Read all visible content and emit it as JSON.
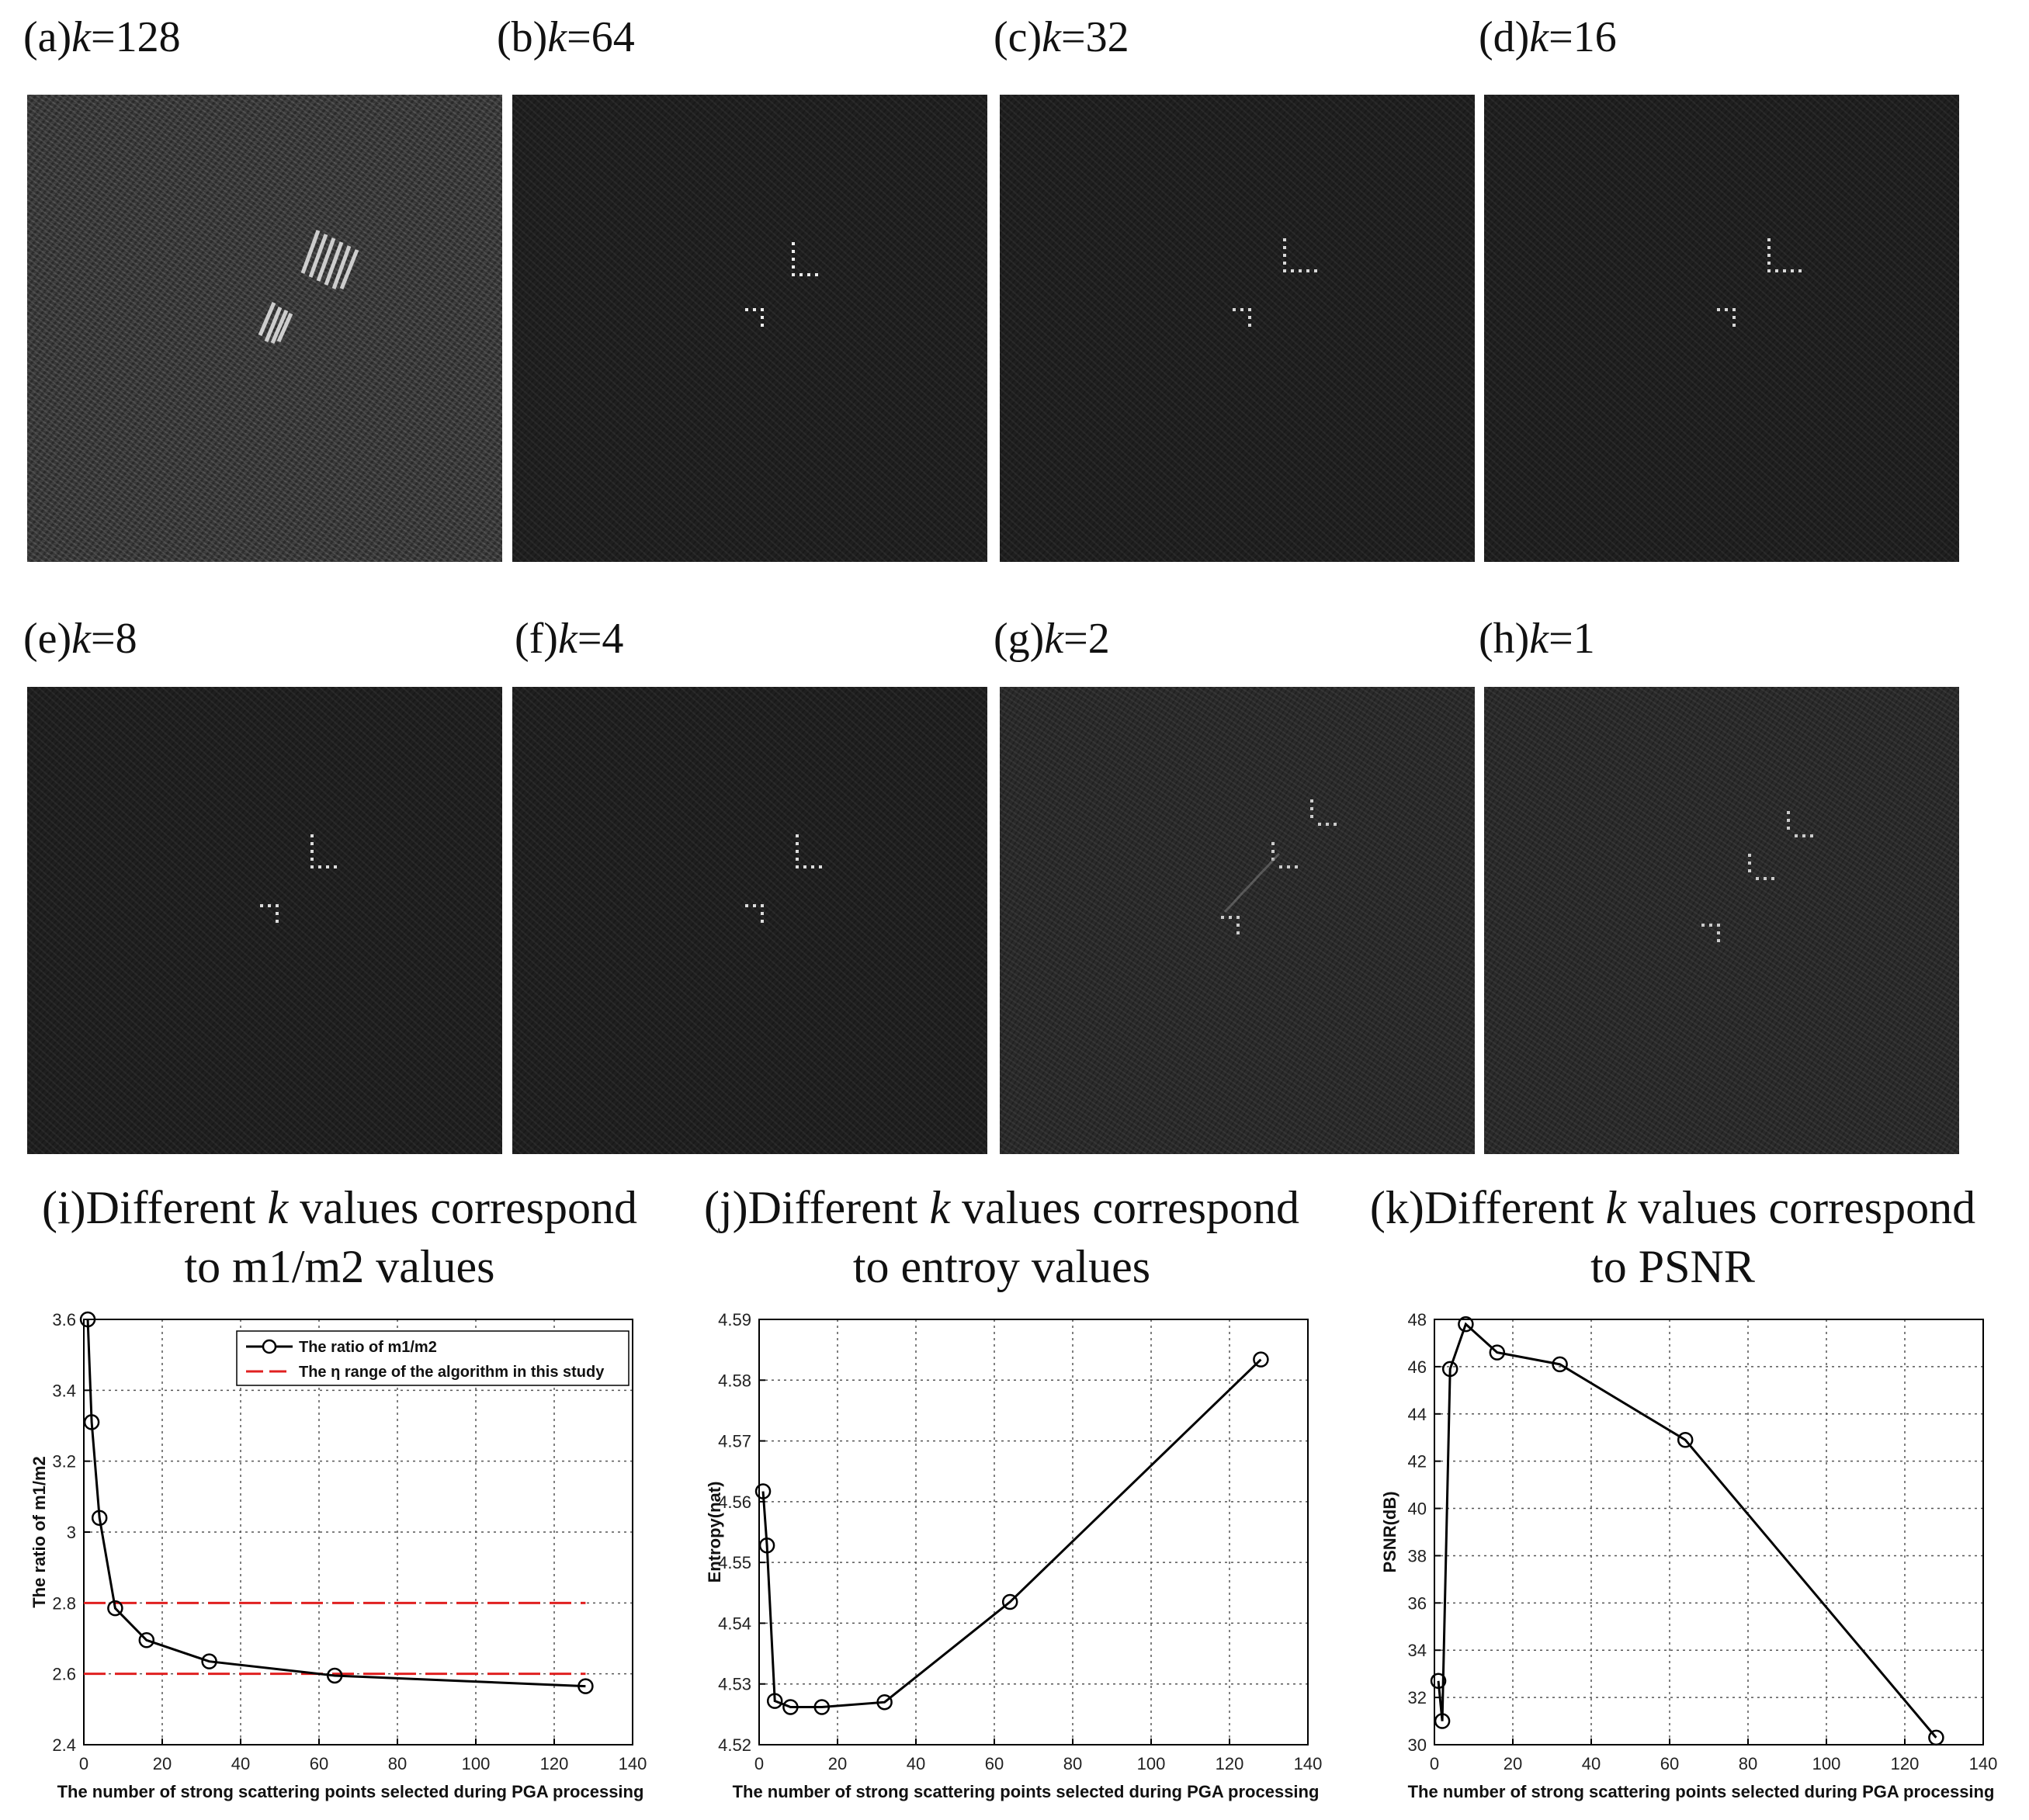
{
  "panels": [
    {
      "prefix": "(a)",
      "var": "k",
      "eq": "=128"
    },
    {
      "prefix": "(b)",
      "var": "k",
      "eq": "=64"
    },
    {
      "prefix": "(c)",
      "var": "k",
      "eq": "=32"
    },
    {
      "prefix": "(d)",
      "var": "k",
      "eq": "=16"
    },
    {
      "prefix": "(e)",
      "var": "k",
      "eq": "=8"
    },
    {
      "prefix": "(f)",
      "var": "k",
      "eq": "=4"
    },
    {
      "prefix": "(g)",
      "var": "k",
      "eq": "=2"
    },
    {
      "prefix": "(h)",
      "var": "k",
      "eq": "=1"
    }
  ],
  "chart_titles": [
    {
      "line1_prefix": "(i)Different ",
      "var": "k",
      "line1_suffix": " values correspond",
      "line2": "to m1/m2 values"
    },
    {
      "line1_prefix": "(j)Different ",
      "var": "k",
      "line1_suffix": " values correspond",
      "line2": "to entroy values"
    },
    {
      "line1_prefix": "(k)Different ",
      "var": "k",
      "line1_suffix": " values correspond",
      "line2": "to PSNR"
    }
  ],
  "chart_data": [
    {
      "type": "line",
      "title": "",
      "xlabel": "The number of strong scattering points selected during PGA processing",
      "ylabel": "The ratio of m1/m2",
      "xlim": [
        0,
        140
      ],
      "ylim": [
        2.4,
        3.6
      ],
      "xticks": [
        "0",
        "20",
        "40",
        "60",
        "80",
        "100",
        "120",
        "140"
      ],
      "yticks": [
        "2.4",
        "2.6",
        "2.8",
        "3",
        "3.2",
        "3.4",
        "3.6"
      ],
      "grid": true,
      "legend_position": "top-right",
      "series": [
        {
          "name": "The ratio of m1/m2",
          "color": "#000000",
          "marker": "circle",
          "x": [
            1,
            2,
            4,
            8,
            16,
            32,
            64,
            128
          ],
          "y": [
            3.6,
            3.31,
            3.04,
            2.785,
            2.695,
            2.635,
            2.595,
            2.565
          ]
        }
      ],
      "reference_lines": [
        {
          "name": "The η range of the algorithm in this study",
          "color": "#e02020",
          "y": [
            2.8,
            2.6
          ],
          "x_range": [
            0,
            128
          ]
        }
      ]
    },
    {
      "type": "line",
      "title": "",
      "xlabel": "The number of strong scattering points selected during PGA processing",
      "ylabel": "Entropy(nat)",
      "xlim": [
        0,
        140
      ],
      "ylim": [
        4.52,
        4.59
      ],
      "xticks": [
        "0",
        "20",
        "40",
        "60",
        "80",
        "100",
        "120",
        "140"
      ],
      "yticks": [
        "4.52",
        "4.53",
        "4.54",
        "4.55",
        "4.56",
        "4.57",
        "4.58",
        "4.59"
      ],
      "grid": true,
      "series": [
        {
          "color": "#000000",
          "marker": "circle",
          "x": [
            1,
            2,
            4,
            8,
            16,
            32,
            64,
            128
          ],
          "y": [
            4.5617,
            4.5528,
            4.5272,
            4.5262,
            4.5262,
            4.527,
            4.5435,
            4.5834
          ]
        }
      ]
    },
    {
      "type": "line",
      "title": "",
      "xlabel": "The number of strong scattering points selected during PGA processing",
      "ylabel": "PSNR(dB)",
      "xlim": [
        0,
        140
      ],
      "ylim": [
        30,
        48
      ],
      "xticks": [
        "0",
        "20",
        "40",
        "60",
        "80",
        "100",
        "120",
        "140"
      ],
      "yticks": [
        "30",
        "32",
        "34",
        "36",
        "38",
        "40",
        "42",
        "44",
        "46",
        "48"
      ],
      "grid": true,
      "series": [
        {
          "color": "#000000",
          "marker": "circle",
          "x": [
            1,
            2,
            4,
            8,
            16,
            32,
            64,
            128
          ],
          "y": [
            32.7,
            31.0,
            45.9,
            47.8,
            46.6,
            46.1,
            42.9,
            30.3
          ]
        }
      ]
    }
  ]
}
